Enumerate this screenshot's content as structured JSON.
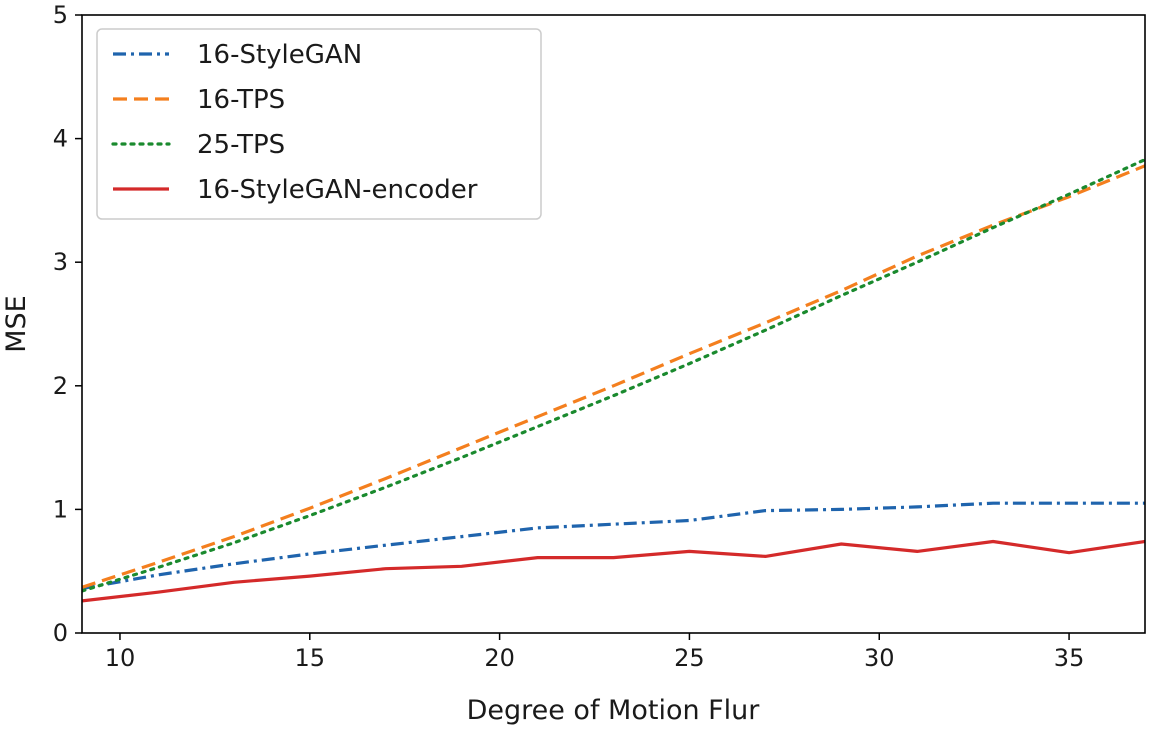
{
  "chart_data": {
    "type": "line",
    "title": "",
    "xlabel": "Degree of Motion Flur",
    "ylabel": "MSE",
    "xlim": [
      9,
      37
    ],
    "ylim": [
      0,
      5
    ],
    "xticks": [
      10,
      15,
      20,
      25,
      30,
      35
    ],
    "yticks": [
      0,
      1,
      2,
      3,
      4,
      5
    ],
    "grid": false,
    "legend_position": "top-left",
    "x": [
      9,
      11,
      13,
      15,
      17,
      19,
      21,
      23,
      25,
      27,
      29,
      31,
      33,
      35,
      37
    ],
    "series": [
      {
        "name": "16-StyleGAN",
        "color": "#1f64ad",
        "style": "dash-dot",
        "values": [
          0.36,
          0.47,
          0.56,
          0.64,
          0.71,
          0.78,
          0.85,
          0.88,
          0.91,
          0.99,
          1.0,
          1.02,
          1.05,
          1.05,
          1.05
        ]
      },
      {
        "name": "16-TPS",
        "color": "#f47f1e",
        "style": "dashed",
        "values": [
          0.37,
          0.57,
          0.78,
          1.01,
          1.25,
          1.5,
          1.75,
          2.0,
          2.26,
          2.51,
          2.77,
          3.05,
          3.3,
          3.53,
          3.78
        ]
      },
      {
        "name": "25-TPS",
        "color": "#1a8a2e",
        "style": "dotted",
        "values": [
          0.34,
          0.53,
          0.73,
          0.95,
          1.18,
          1.42,
          1.67,
          1.92,
          2.18,
          2.45,
          2.73,
          3.0,
          3.28,
          3.55,
          3.83
        ]
      },
      {
        "name": "16-StyleGAN-encoder",
        "color": "#d42a2a",
        "style": "solid",
        "values": [
          0.26,
          0.33,
          0.41,
          0.46,
          0.52,
          0.54,
          0.61,
          0.61,
          0.66,
          0.62,
          0.72,
          0.66,
          0.74,
          0.65,
          0.74
        ]
      }
    ]
  }
}
